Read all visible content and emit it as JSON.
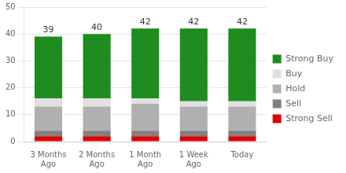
{
  "chart_data": {
    "type": "bar",
    "stacked": true,
    "categories": [
      "3 Months\nAgo",
      "2 Months\nAgo",
      "1 Month\nAgo",
      "1 Week\nAgo",
      "Today"
    ],
    "series": [
      {
        "name": "Strong Sell",
        "color": "#dd0000",
        "values": [
          2,
          2,
          2,
          2,
          2
        ]
      },
      {
        "name": "Sell",
        "color": "#808080",
        "values": [
          2,
          2,
          2,
          2,
          2
        ]
      },
      {
        "name": "Hold",
        "color": "#b0b0b0",
        "values": [
          9,
          9,
          10,
          9,
          9
        ]
      },
      {
        "name": "Buy",
        "color": "#e0e0e0",
        "values": [
          3,
          3,
          2,
          2,
          2
        ]
      },
      {
        "name": "Strong Buy",
        "color": "#1e8c1e",
        "values": [
          23,
          24,
          26,
          27,
          27
        ]
      }
    ],
    "totals": [
      39,
      40,
      42,
      42,
      42
    ],
    "ylim": [
      0,
      50
    ],
    "yticks": [
      0,
      10,
      20,
      30,
      40,
      50
    ],
    "grid": "y",
    "legend": "right"
  }
}
